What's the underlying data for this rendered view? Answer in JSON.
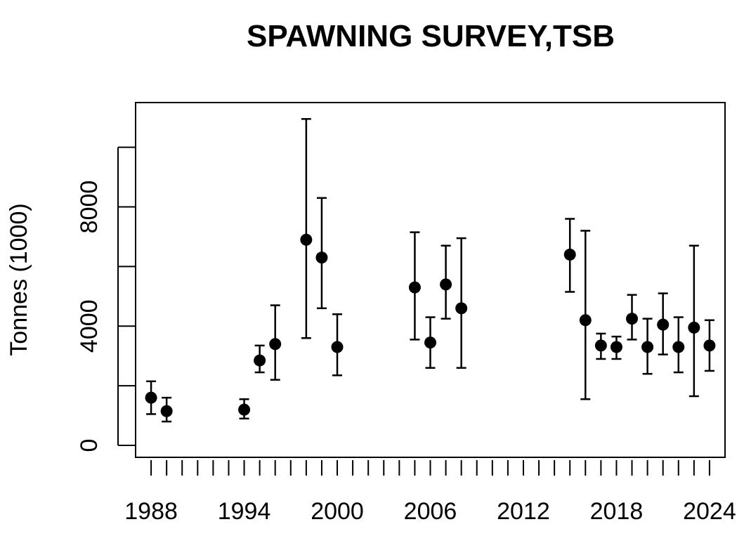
{
  "chart_data": {
    "type": "scatter",
    "title": "SPAWNING SURVEY,TSB",
    "xlabel": "",
    "ylabel": "Tonnes (1000)",
    "xlim": [
      1987,
      2025
    ],
    "ylim": [
      -400,
      11500
    ],
    "x_tick_labels": [
      "1988",
      "1994",
      "2000",
      "2006",
      "2012",
      "2018",
      "2024"
    ],
    "y_tick_labels": [
      "0",
      "4000",
      "8000"
    ],
    "grid": false,
    "legend": "none",
    "series": [
      {
        "points": [
          {
            "x": 1988,
            "y": 1600,
            "lo": 1050,
            "hi": 2150
          },
          {
            "x": 1989,
            "y": 1150,
            "lo": 800,
            "hi": 1600
          },
          {
            "x": 1994,
            "y": 1200,
            "lo": 900,
            "hi": 1550
          },
          {
            "x": 1995,
            "y": 2850,
            "lo": 2450,
            "hi": 3350
          },
          {
            "x": 1996,
            "y": 3400,
            "lo": 2200,
            "hi": 4700
          },
          {
            "x": 1998,
            "y": 6900,
            "lo": 3600,
            "hi": 10950
          },
          {
            "x": 1999,
            "y": 6300,
            "lo": 4600,
            "hi": 8300
          },
          {
            "x": 2000,
            "y": 3300,
            "lo": 2350,
            "hi": 4400
          },
          {
            "x": 2005,
            "y": 5300,
            "lo": 3550,
            "hi": 7150
          },
          {
            "x": 2006,
            "y": 3450,
            "lo": 2600,
            "hi": 4300
          },
          {
            "x": 2007,
            "y": 5400,
            "lo": 4250,
            "hi": 6700
          },
          {
            "x": 2008,
            "y": 4600,
            "lo": 2600,
            "hi": 6950
          },
          {
            "x": 2015,
            "y": 6400,
            "lo": 5150,
            "hi": 7600
          },
          {
            "x": 2016,
            "y": 4200,
            "lo": 1550,
            "hi": 7200
          },
          {
            "x": 2017,
            "y": 3350,
            "lo": 2900,
            "hi": 3750
          },
          {
            "x": 2018,
            "y": 3300,
            "lo": 2900,
            "hi": 3650
          },
          {
            "x": 2019,
            "y": 4250,
            "lo": 3550,
            "hi": 5050
          },
          {
            "x": 2020,
            "y": 3300,
            "lo": 2400,
            "hi": 4250
          },
          {
            "x": 2021,
            "y": 4050,
            "lo": 3050,
            "hi": 5100
          },
          {
            "x": 2022,
            "y": 3300,
            "lo": 2450,
            "hi": 4300
          },
          {
            "x": 2023,
            "y": 3950,
            "lo": 1650,
            "hi": 6700
          },
          {
            "x": 2024,
            "y": 3350,
            "lo": 2500,
            "hi": 4200
          }
        ]
      }
    ]
  }
}
